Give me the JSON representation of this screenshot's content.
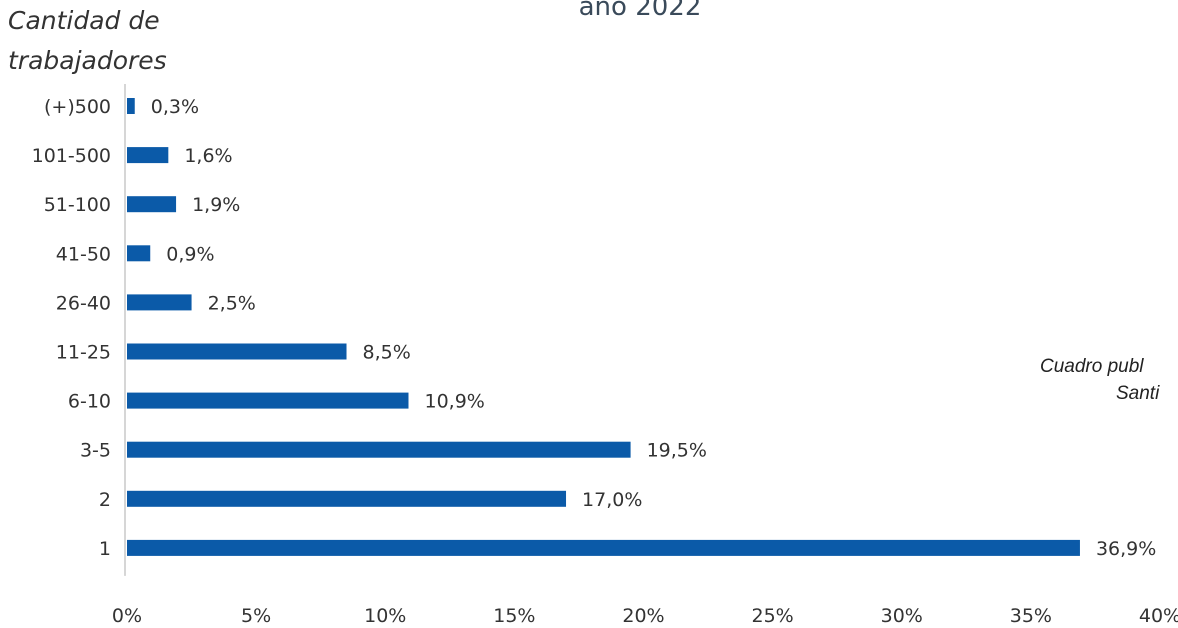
{
  "header": {
    "title_fragment": "año 2022",
    "ylabel_line1": "Cantidad de",
    "ylabel_line2": "trabajadores"
  },
  "side_note": {
    "line1": "Cuadro publ",
    "line2": "Santi"
  },
  "colors": {
    "bar": "#0b5aa8",
    "axis": "#c8c8c8",
    "text": "#333333"
  },
  "chart_data": {
    "type": "bar",
    "orientation": "horizontal",
    "categories": [
      "(+)500",
      "101-500",
      "51-100",
      "41-50",
      "26-40",
      "11-25",
      "6-10",
      "3-5",
      "2",
      "1"
    ],
    "values": [
      0.3,
      1.6,
      1.9,
      0.9,
      2.5,
      8.5,
      10.9,
      19.5,
      17.0,
      36.9
    ],
    "value_labels": [
      "0,3%",
      "1,6%",
      "1,9%",
      "0,9%",
      "2,5%",
      "8,5%",
      "10,9%",
      "19,5%",
      "17,0%",
      "36,9%"
    ],
    "x_ticks": [
      0,
      5,
      10,
      15,
      20,
      25,
      30,
      35,
      40
    ],
    "x_tick_labels": [
      "0%",
      "5%",
      "10%",
      "15%",
      "20%",
      "25%",
      "30%",
      "35%",
      "40%"
    ],
    "xlim": [
      0,
      40
    ],
    "grid": false,
    "ylabel": "Cantidad de trabajadores",
    "xlabel": ""
  }
}
